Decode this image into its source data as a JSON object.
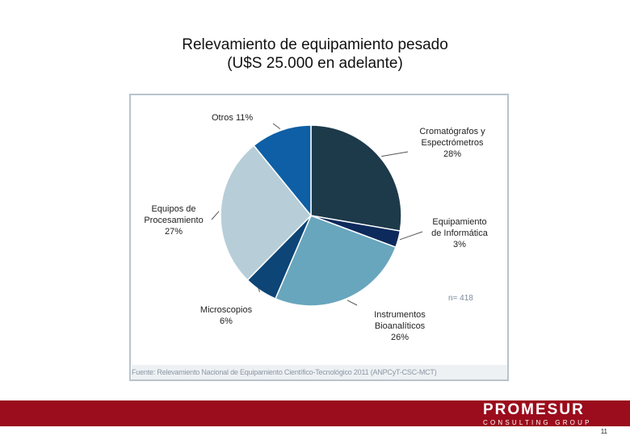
{
  "title": {
    "line1": "Relevamiento de equipamiento pesado",
    "line2": "(U$S 25.000 en adelante)"
  },
  "chart_data": {
    "type": "pie",
    "title": "Relevamiento de equipamiento pesado (U$S 25.000 en adelante)",
    "slices": [
      {
        "label": "Cromatógrafos y Espectrómetros",
        "value": 28,
        "display": "28%",
        "color": "#1d3a4a"
      },
      {
        "label": "Equipamiento de Informática",
        "value": 3,
        "display": "3%",
        "color": "#0d2a5c"
      },
      {
        "label": "Instrumentos Bioanalíticos",
        "value": 26,
        "display": "26%",
        "color": "#68a6bd"
      },
      {
        "label": "Microscopios",
        "value": 6,
        "display": "6%",
        "color": "#0c4576"
      },
      {
        "label": "Equipos de Procesamiento",
        "value": 27,
        "display": "27%",
        "color": "#b7ced9"
      },
      {
        "label": "Otros",
        "value": 11,
        "display": "11%",
        "color": "#0e5fa5"
      }
    ],
    "n": "n= 418",
    "source": "Fuente: Relevamiento Nacional de Equipamiento Científico-Tecnológico 2011 (ANPCyT-CSC-MCT)"
  },
  "labels": {
    "otros": "Otros 11%",
    "crom1": "Cromatógrafos y",
    "crom2": "Espectrómetros",
    "crom3": "28%",
    "equip1": "Equipos de",
    "equip2": "Procesamiento",
    "equip3": "27%",
    "info1": "Equipamiento",
    "info2": "de Informática",
    "info3": "3%",
    "micro1": "Microscopios",
    "micro2": "6%",
    "bio1": "Instrumentos",
    "bio2": "Bioanalíticos",
    "bio3": "26%"
  },
  "footer": {
    "brand": "PROMESUR",
    "tagline": "CONSULTING GROUP",
    "page": "11"
  }
}
